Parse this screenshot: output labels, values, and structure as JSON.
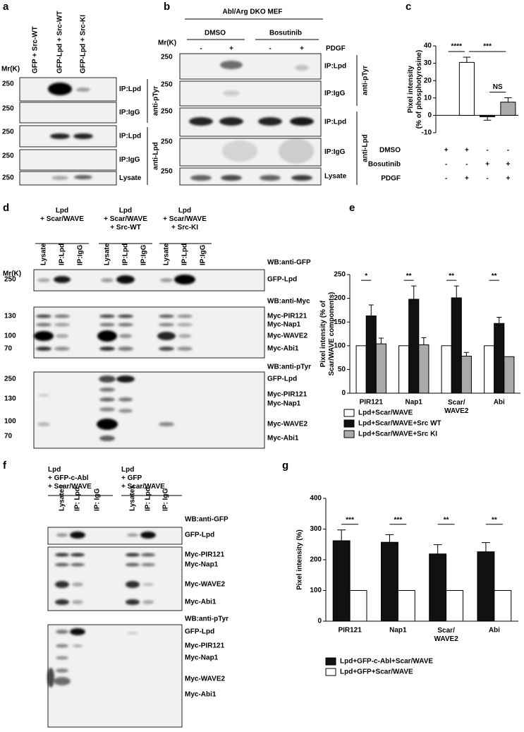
{
  "blot_a": {
    "label": "a",
    "lanes": [
      "GFP + Src-WT",
      "GFP-Lpd + Src-WT",
      "GFP-Lpd + Src-KI"
    ],
    "mr": "Mr(K)",
    "rows": [
      {
        "marker": "250",
        "label": "IP:Lpd"
      },
      {
        "marker": "250",
        "label": "IP:IgG"
      },
      {
        "marker": "250",
        "label": "IP:Lpd"
      },
      {
        "marker": "250",
        "label": "IP:IgG"
      },
      {
        "marker": "250",
        "label": "Lysate"
      }
    ],
    "antibodies": [
      "anti-pTyr",
      "anti-Lpd"
    ]
  },
  "blot_b": {
    "label": "b",
    "title": "Abl/Arg DKO MEF",
    "mr": "Mr(K)",
    "groups": [
      "DMSO",
      "Bosutinib"
    ],
    "treatment": "PDGF",
    "signs": [
      "-",
      "+",
      "-",
      "+"
    ],
    "rows": [
      {
        "marker": "250",
        "label": "IP:Lpd"
      },
      {
        "marker": "250",
        "label": "IP:IgG"
      },
      {
        "marker": "250",
        "label": "IP:Lpd"
      },
      {
        "marker": "250",
        "label": "IP:IgG"
      },
      {
        "marker": "250",
        "label": "Lysate"
      }
    ],
    "antibodies": [
      "anti-pTyr",
      "anti-Lpd"
    ]
  },
  "blot_d": {
    "label": "d",
    "groups": [
      "Lpd\n+ Scar/WAVE",
      "Lpd\n+ Scar/WAVE\n+ Src-WT",
      "Lpd\n+ Scar/WAVE\n+ Src-KI"
    ],
    "lanes": [
      "Lysate",
      "IP:Lpd",
      "IP:IgG",
      "Lysate",
      "IP:Lpd",
      "IP:IgG",
      "Lysate",
      "IP:Lpd",
      "IP:IgG"
    ],
    "mr": "Mr(K)",
    "sections": [
      {
        "title": "WB:anti-GFP",
        "markers": [
          "250"
        ],
        "bands": [
          "GFP-Lpd"
        ]
      },
      {
        "title": "WB:anti-Myc",
        "markers": [
          "130",
          "100",
          "70"
        ],
        "bands": [
          "Myc-PIR121",
          "Myc-Nap1",
          "Myc-WAVE2",
          "Myc-Abi1"
        ]
      },
      {
        "title": "WB:anti-pTyr",
        "markers": [
          "250",
          "130",
          "100",
          "70"
        ],
        "bands": [
          "GFP-Lpd",
          "Myc-PIR121",
          "Myc-Nap1",
          "Myc-WAVE2",
          "Myc-Abi1"
        ]
      }
    ]
  },
  "blot_f": {
    "label": "f",
    "groups": [
      "Lpd\n+ GFP-c-Abl\n+ Scar/WAVE",
      "Lpd\n+ GFP\n+ Scar/WAVE"
    ],
    "lanes": [
      "Lysates",
      "IP: Lpd",
      "IP: IgG",
      "Lysates",
      "IP: Lpd",
      "IP: IgG"
    ],
    "sections": [
      {
        "title": "WB:anti-GFP",
        "bands": [
          "GFP-Lpd"
        ]
      },
      {
        "bands": [
          "Myc-PIR121",
          "Myc-Nap1",
          "Myc-WAVE2",
          "Myc-Abi1"
        ]
      },
      {
        "title": "WB:anti-pTyr",
        "bands": [
          "GFP-Lpd",
          "Myc-PIR121",
          "Myc-Nap1",
          "Myc-WAVE2",
          "Myc-Abi1"
        ]
      }
    ]
  },
  "chart_data": [
    {
      "type": "bar",
      "label": "c",
      "ylabel": "Pixel intensity\n(% of phosphotyrosine)",
      "categories": [
        null,
        null,
        null,
        null
      ],
      "values": [
        null,
        30.5,
        -0.8,
        7.6
      ],
      "errors": [
        null,
        3,
        2,
        2.5
      ],
      "colors": [
        null,
        "#ffffff",
        "#111111",
        "#aaaaaa"
      ],
      "ylim": [
        -10,
        40
      ],
      "yticks": [
        -10,
        0,
        10,
        20,
        30,
        40
      ],
      "conditions": [
        {
          "name": "DMSO",
          "signs": [
            "+",
            "+",
            "-",
            "-"
          ]
        },
        {
          "name": "Bosutinib",
          "signs": [
            "-",
            "-",
            "+",
            "+"
          ]
        },
        {
          "name": "PDGF",
          "signs": [
            "-",
            "+",
            "-",
            "+"
          ]
        }
      ],
      "annotations": [
        {
          "text": "****",
          "from": 0,
          "to": 1
        },
        {
          "text": "***",
          "from": 1,
          "to": 3
        },
        {
          "text": "NS",
          "from": 2,
          "to": 3
        }
      ]
    },
    {
      "type": "bar",
      "label": "e",
      "ylabel": "Pixel intensity (% of\nScar/WAVE components)",
      "categories": [
        "PIR121",
        "Nap1",
        "Scar/\nWAVE2",
        "Abi"
      ],
      "series": [
        {
          "name": "Lpd+Scar/WAVE",
          "color": "#ffffff",
          "values": [
            100,
            100,
            100,
            100
          ]
        },
        {
          "name": "Lpd+Scar/WAVE+Src WT",
          "color": "#111111",
          "values": [
            163,
            198,
            201,
            147
          ],
          "errors": [
            23,
            28,
            25,
            13
          ]
        },
        {
          "name": "Lpd+Scar/WAVE+Src KI",
          "color": "#aaaaaa",
          "values": [
            104,
            102,
            78,
            77
          ],
          "errors": [
            12,
            15,
            8,
            null
          ]
        }
      ],
      "ylim": [
        0,
        250
      ],
      "yticks": [
        0,
        50,
        100,
        150,
        200,
        250
      ],
      "significance": [
        "*",
        "**",
        "**",
        "**"
      ]
    },
    {
      "type": "bar",
      "label": "g",
      "ylabel": "Pixel intensity (%)",
      "categories": [
        "PIR121",
        "Nap1",
        "Scar/\nWAVE2",
        "Abi"
      ],
      "series": [
        {
          "name": "Lpd+GFP-c-Abl+Scar/WAVE",
          "color": "#111111",
          "values": [
            262,
            257,
            219,
            226
          ],
          "errors": [
            35,
            25,
            30,
            30
          ]
        },
        {
          "name": "Lpd+GFP+Scar/WAVE",
          "color": "#ffffff",
          "values": [
            100,
            100,
            100,
            100
          ]
        }
      ],
      "ylim": [
        0,
        400
      ],
      "yticks": [
        0,
        100,
        200,
        300,
        400
      ],
      "significance": [
        "***",
        "***",
        "**",
        "**"
      ]
    }
  ]
}
